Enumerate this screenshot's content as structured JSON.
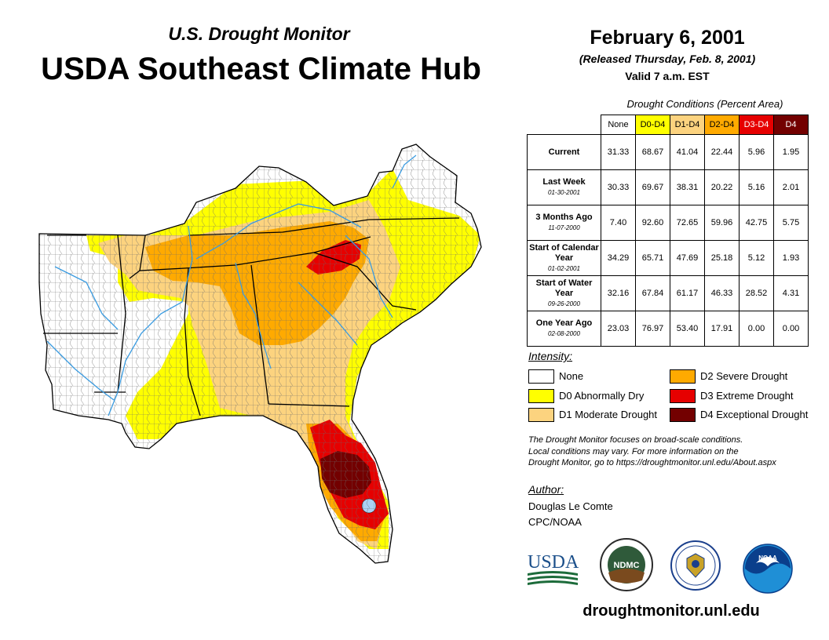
{
  "header": {
    "subtitle": "U.S. Drought Monitor",
    "title": "USDA Southeast Climate Hub",
    "date": "February 6, 2001",
    "released": "(Released Thursday, Feb. 8, 2001)",
    "valid": "Valid 7 a.m. EST"
  },
  "table": {
    "caption": "Drought Conditions (Percent Area)",
    "columns": [
      "None",
      "D0-D4",
      "D1-D4",
      "D2-D4",
      "D3-D4",
      "D4"
    ],
    "column_colors": [
      "#ffffff",
      "#ffff00",
      "#fcd37f",
      "#ffaa00",
      "#e60000",
      "#730000"
    ],
    "rows": [
      {
        "label": "Current",
        "date": "",
        "values": [
          "31.33",
          "68.67",
          "41.04",
          "22.44",
          "5.96",
          "1.95"
        ]
      },
      {
        "label": "Last Week",
        "date": "01-30-2001",
        "values": [
          "30.33",
          "69.67",
          "38.31",
          "20.22",
          "5.16",
          "2.01"
        ]
      },
      {
        "label": "3 Months Ago",
        "date": "11-07-2000",
        "values": [
          "7.40",
          "92.60",
          "72.65",
          "59.96",
          "42.75",
          "5.75"
        ]
      },
      {
        "label": "Start of Calendar Year",
        "date": "01-02-2001",
        "values": [
          "34.29",
          "65.71",
          "47.69",
          "25.18",
          "5.12",
          "1.93"
        ]
      },
      {
        "label": "Start of Water Year",
        "date": "09-26-2000",
        "values": [
          "32.16",
          "67.84",
          "61.17",
          "46.33",
          "28.52",
          "4.31"
        ]
      },
      {
        "label": "One Year Ago",
        "date": "02-08-2000",
        "values": [
          "23.03",
          "76.97",
          "53.40",
          "17.91",
          "0.00",
          "0.00"
        ]
      }
    ]
  },
  "legend": {
    "title": "Intensity:",
    "items": [
      {
        "label": "None",
        "color": "#ffffff"
      },
      {
        "label": "D0 Abnormally Dry",
        "color": "#ffff00"
      },
      {
        "label": "D1 Moderate Drought",
        "color": "#fcd37f"
      },
      {
        "label": "D2 Severe Drought",
        "color": "#ffaa00"
      },
      {
        "label": "D3 Extreme Drought",
        "color": "#e60000"
      },
      {
        "label": "D4 Exceptional Drought",
        "color": "#730000"
      }
    ]
  },
  "note": {
    "line1": "The Drought Monitor focuses on broad-scale conditions.",
    "line2": "Local conditions may vary. For more information on the",
    "line3": "Drought Monitor, go to https://droughtmonitor.unl.edu/About.aspx"
  },
  "author": {
    "title": "Author:",
    "name": "Douglas Le Comte",
    "org": "CPC/NOAA"
  },
  "logos": {
    "usda": "USDA",
    "ndmc": "NDMC",
    "noaa": "NOAA"
  },
  "footer": {
    "url": "droughtmonitor.unl.edu"
  }
}
